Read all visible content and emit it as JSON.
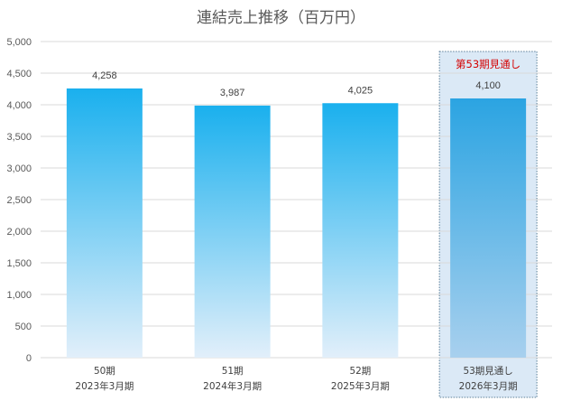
{
  "chart_data": {
    "type": "bar",
    "title": "連結売上推移（百万円）",
    "categories": [
      {
        "line1": "50期",
        "line2": "2023年3月期"
      },
      {
        "line1": "51期",
        "line2": "2024年3月期"
      },
      {
        "line1": "52期",
        "line2": "2025年3月期"
      },
      {
        "line1": "53期見通し",
        "line2": "2026年3月期"
      }
    ],
    "values": [
      4258,
      3987,
      4025,
      4100
    ],
    "value_labels": [
      "4,258",
      "3,987",
      "4,025",
      "4,100"
    ],
    "ylim": [
      0,
      5000
    ],
    "yticks": [
      0,
      500,
      1000,
      1500,
      2000,
      2500,
      3000,
      3500,
      4000,
      4500,
      5000
    ],
    "ytick_labels": [
      "0",
      "500",
      "1,000",
      "1,500",
      "2,000",
      "2,500",
      "3,000",
      "3,500",
      "4,000",
      "4,500",
      "5,000"
    ],
    "grid": true,
    "highlight": {
      "index": 3,
      "label": "第53期見通し"
    },
    "colors": {
      "bar_top": "#1ab0ee",
      "bar_bottom": "#e2effa",
      "highlight_top": "#2ba4e2",
      "highlight_bottom": "#a8d0ee",
      "highlight_box_fill": "#dbe9f6",
      "highlight_box_border": "#5b7f98",
      "gridline": "#d9d9d9",
      "note_text": "#d40000"
    }
  }
}
